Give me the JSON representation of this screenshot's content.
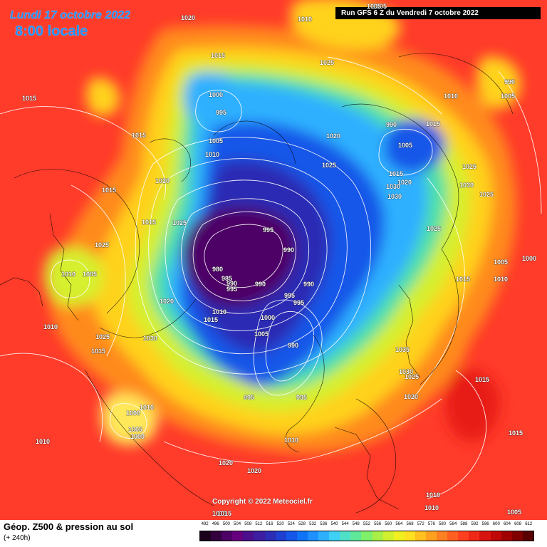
{
  "header": {
    "date": "Lundi 17 octobre 2022",
    "time": "8:00 locale",
    "run": "Run GFS 6 Z du Vendredi 7 octobre 2022"
  },
  "copyright": "Copyright © 2022 Meteociel.fr",
  "footer": {
    "title": "Géop. Z500 & pression au sol",
    "subtitle": "(+ 240h)"
  },
  "legend": {
    "values": [
      "492",
      "496",
      "500",
      "504",
      "508",
      "512",
      "516",
      "520",
      "524",
      "528",
      "532",
      "536",
      "540",
      "544",
      "548",
      "552",
      "556",
      "560",
      "564",
      "568",
      "572",
      "576",
      "580",
      "584",
      "588",
      "592",
      "596",
      "600",
      "604",
      "608",
      "612"
    ],
    "colors": [
      "#1a001a",
      "#33003d",
      "#4d0066",
      "#66007f",
      "#4b0f8c",
      "#3d1ea0",
      "#2c2cb4",
      "#1f3fd0",
      "#1557e8",
      "#0f73f5",
      "#1e90ff",
      "#2fb0ff",
      "#3fd0f5",
      "#4fe0c8",
      "#5fe89a",
      "#7ff06a",
      "#a8f048",
      "#d0f030",
      "#f0f020",
      "#ffe020",
      "#ffc020",
      "#ffa020",
      "#ff8020",
      "#ff6020",
      "#ff4020",
      "#f02818",
      "#d81410",
      "#c00808",
      "#a00000",
      "#800000",
      "#5a0000"
    ]
  },
  "pressure_labels": [
    {
      "text": "1020"
    },
    {
      "text": "1010"
    },
    {
      "text": "1005"
    },
    {
      "text": "1015"
    },
    {
      "text": "1015"
    },
    {
      "text": "1025"
    },
    {
      "text": "1000"
    },
    {
      "text": "995"
    },
    {
      "text": "1015"
    },
    {
      "text": "1005"
    },
    {
      "text": "1010"
    },
    {
      "text": "1020"
    },
    {
      "text": "1020"
    },
    {
      "text": "1015"
    },
    {
      "text": "1025"
    },
    {
      "text": "1015"
    },
    {
      "text": "1025"
    },
    {
      "text": "1010"
    },
    {
      "text": "1005"
    },
    {
      "text": "995"
    },
    {
      "text": "990"
    },
    {
      "text": "980"
    },
    {
      "text": "985"
    },
    {
      "text": "990"
    },
    {
      "text": "995"
    },
    {
      "text": "990"
    },
    {
      "text": "990"
    },
    {
      "text": "995"
    },
    {
      "text": "995"
    },
    {
      "text": "1000"
    },
    {
      "text": "1020"
    },
    {
      "text": "1010"
    },
    {
      "text": "1015"
    },
    {
      "text": "1005"
    },
    {
      "text": "1010"
    },
    {
      "text": "1025"
    },
    {
      "text": "1030"
    },
    {
      "text": "1015"
    },
    {
      "text": "990"
    },
    {
      "text": "995"
    },
    {
      "text": "1010"
    },
    {
      "text": "1005"
    },
    {
      "text": "990"
    },
    {
      "text": "995"
    },
    {
      "text": "1000"
    },
    {
      "text": "1010"
    },
    {
      "text": "1020"
    },
    {
      "text": "1010"
    },
    {
      "text": "1020"
    },
    {
      "text": "1030"
    },
    {
      "text": "1025"
    },
    {
      "text": "1015"
    },
    {
      "text": "1030"
    },
    {
      "text": "1020"
    },
    {
      "text": "1015"
    },
    {
      "text": "1005"
    },
    {
      "text": "1010"
    },
    {
      "text": "1025"
    },
    {
      "text": "1030"
    },
    {
      "text": "1025"
    },
    {
      "text": "1025"
    },
    {
      "text": "1015"
    },
    {
      "text": "1035"
    },
    {
      "text": "1030"
    },
    {
      "text": "1025"
    },
    {
      "text": "1020"
    },
    {
      "text": "1015"
    },
    {
      "text": "1015"
    },
    {
      "text": "1010"
    },
    {
      "text": "1005"
    },
    {
      "text": "1010"
    },
    {
      "text": "990"
    },
    {
      "text": "1000"
    },
    {
      "text": "1005"
    },
    {
      "text": "1000"
    },
    {
      "text": "1005"
    },
    {
      "text": "1010"
    },
    {
      "text": "1015"
    },
    {
      "text": "1005"
    },
    {
      "text": "1010"
    }
  ]
}
